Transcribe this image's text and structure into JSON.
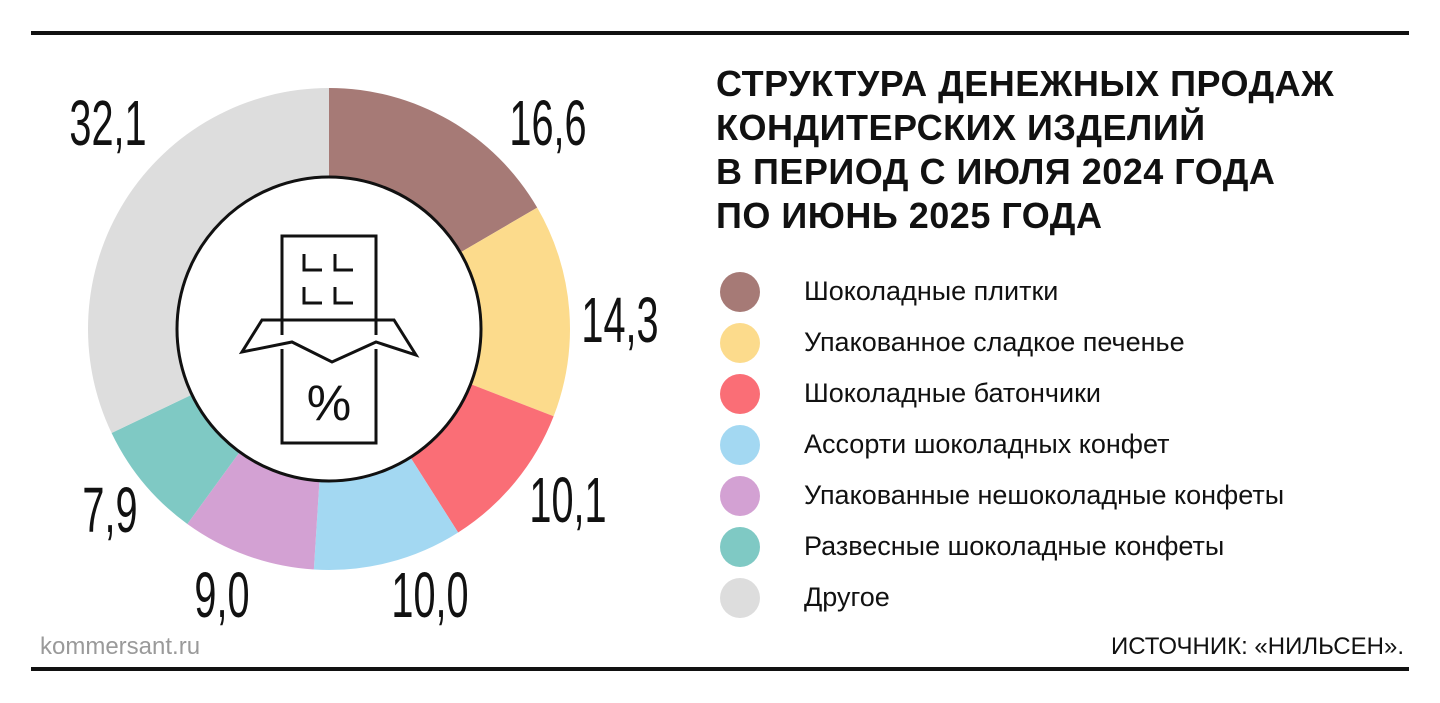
{
  "title_lines": [
    "СТРУКТУРА ДЕНЕЖНЫХ ПРОДАЖ",
    "КОНДИТЕРСКИХ ИЗДЕЛИЙ",
    "В ПЕРИОД С ИЮЛЯ 2024 ГОДА",
    "ПО ИЮНЬ 2025 ГОДА"
  ],
  "footer": {
    "site": "kommersant.ru",
    "source": "ИСТОЧНИК: «НИЛЬСЕН»."
  },
  "center_icon": {
    "name": "chocolate-bar-icon",
    "symbol": "%"
  },
  "chart_data": {
    "type": "pie",
    "style": "donut",
    "title": "СТРУКТУРА ДЕНЕЖНЫХ ПРОДАЖ КОНДИТЕРСКИХ ИЗДЕЛИЙ В ПЕРИОД С ИЮЛЯ 2024 ГОДА ПО ИЮНЬ 2025 ГОДА",
    "legend_position": "right",
    "slices": [
      {
        "label": "Шоколадные плитки",
        "value": 16.6,
        "value_label": "16,6",
        "color": "#a67a76"
      },
      {
        "label": "Упакованное сладкое печенье",
        "value": 14.3,
        "value_label": "14,3",
        "color": "#fcdb8c"
      },
      {
        "label": "Шоколадные батончики",
        "value": 10.1,
        "value_label": "10,1",
        "color": "#fa6e76"
      },
      {
        "label": "Ассорти шоколадных конфет",
        "value": 10.0,
        "value_label": "10,0",
        "color": "#a3d8f2"
      },
      {
        "label": "Упакованные нешоколадные конфеты",
        "value": 9.0,
        "value_label": "9,0",
        "color": "#d3a1d3"
      },
      {
        "label": "Развесные шоколадные конфеты",
        "value": 7.9,
        "value_label": "7,9",
        "color": "#7fc9c4"
      },
      {
        "label": "Другое",
        "value": 32.1,
        "value_label": "32,1",
        "color": "#dddddd"
      }
    ]
  }
}
